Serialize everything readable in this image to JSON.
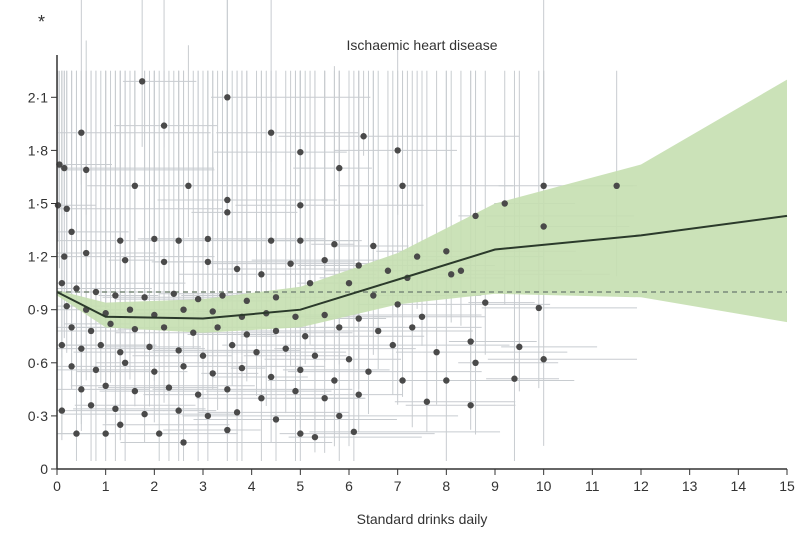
{
  "chart_data": {
    "type": "scatter",
    "panel_marker": "*",
    "title": "Ischaemic heart disease",
    "xlabel": "Standard drinks daily",
    "ylabel": "",
    "xlim": [
      0,
      15
    ],
    "ylim": [
      0,
      2.25
    ],
    "x_ticks": [
      "0",
      "1",
      "2",
      "3",
      "4",
      "5",
      "6",
      "7",
      "8",
      "9",
      "10",
      "11",
      "12",
      "13",
      "14",
      "15"
    ],
    "y_ticks": [
      {
        "v": 0,
        "label": "0"
      },
      {
        "v": 0.3,
        "label": "0·3"
      },
      {
        "v": 0.6,
        "label": "0·6"
      },
      {
        "v": 0.9,
        "label": "0·9"
      },
      {
        "v": 1.2,
        "label": "1·2"
      },
      {
        "v": 1.5,
        "label": "1·5"
      },
      {
        "v": 1.8,
        "label": "1·8"
      },
      {
        "v": 2.1,
        "label": "2·1"
      }
    ],
    "reference_line": 1.0,
    "grid": false,
    "colors": {
      "band": "#c5dfb0",
      "line": "#2b3a2b",
      "points": "#4a4a4a",
      "errorbars": "#c8ccd0",
      "reference": "#7a8a7a"
    },
    "fitted_curve": {
      "x": [
        0,
        1,
        3,
        5,
        7,
        9,
        12,
        15
      ],
      "y": [
        1.0,
        0.86,
        0.85,
        0.9,
        1.07,
        1.24,
        1.32,
        1.43
      ],
      "upper": [
        1.01,
        0.94,
        0.96,
        1.03,
        1.22,
        1.5,
        1.72,
        2.2
      ],
      "lower": [
        0.98,
        0.8,
        0.77,
        0.8,
        0.93,
        0.99,
        0.97,
        0.83
      ]
    },
    "points": [
      [
        1.75,
        2.19
      ],
      [
        3.5,
        2.1
      ],
      [
        0.5,
        1.9
      ],
      [
        2.2,
        1.94
      ],
      [
        4.4,
        1.9
      ],
      [
        6.3,
        1.88
      ],
      [
        5.0,
        1.79
      ],
      [
        7.0,
        1.8
      ],
      [
        0.05,
        1.72
      ],
      [
        0.6,
        1.69
      ],
      [
        0.15,
        1.7
      ],
      [
        1.6,
        1.6
      ],
      [
        2.7,
        1.6
      ],
      [
        5.8,
        1.7
      ],
      [
        7.1,
        1.6
      ],
      [
        10.0,
        1.6
      ],
      [
        11.5,
        1.6
      ],
      [
        0.02,
        1.49
      ],
      [
        0.2,
        1.47
      ],
      [
        3.5,
        1.52
      ],
      [
        3.5,
        1.45
      ],
      [
        5.0,
        1.49
      ],
      [
        9.2,
        1.5
      ],
      [
        8.6,
        1.43
      ],
      [
        10.0,
        1.37
      ],
      [
        0.3,
        1.34
      ],
      [
        3.1,
        1.3
      ],
      [
        2.5,
        1.29
      ],
      [
        2.0,
        1.3
      ],
      [
        1.3,
        1.29
      ],
      [
        4.4,
        1.29
      ],
      [
        5.0,
        1.29
      ],
      [
        5.7,
        1.27
      ],
      [
        6.5,
        1.26
      ],
      [
        7.4,
        1.2
      ],
      [
        0.15,
        1.2
      ],
      [
        0.6,
        1.22
      ],
      [
        1.4,
        1.18
      ],
      [
        2.2,
        1.17
      ],
      [
        3.1,
        1.17
      ],
      [
        3.7,
        1.13
      ],
      [
        4.2,
        1.1
      ],
      [
        4.8,
        1.16
      ],
      [
        5.5,
        1.18
      ],
      [
        6.2,
        1.15
      ],
      [
        7.2,
        1.08
      ],
      [
        8.0,
        1.23
      ],
      [
        8.3,
        1.12
      ],
      [
        8.1,
        1.1
      ],
      [
        6.8,
        1.12
      ],
      [
        6.0,
        1.05
      ],
      [
        5.2,
        1.05
      ],
      [
        0.1,
        1.05
      ],
      [
        0.4,
        1.02
      ],
      [
        0.8,
        1.0
      ],
      [
        1.2,
        0.98
      ],
      [
        1.8,
        0.97
      ],
      [
        2.4,
        0.99
      ],
      [
        2.9,
        0.96
      ],
      [
        3.4,
        0.98
      ],
      [
        3.9,
        0.95
      ],
      [
        4.5,
        0.97
      ],
      [
        6.5,
        0.98
      ],
      [
        7.0,
        0.93
      ],
      [
        8.8,
        0.94
      ],
      [
        9.9,
        0.91
      ],
      [
        0.2,
        0.92
      ],
      [
        0.6,
        0.9
      ],
      [
        1.0,
        0.88
      ],
      [
        1.5,
        0.9
      ],
      [
        2.0,
        0.87
      ],
      [
        2.6,
        0.9
      ],
      [
        3.2,
        0.89
      ],
      [
        3.8,
        0.86
      ],
      [
        4.3,
        0.88
      ],
      [
        4.9,
        0.86
      ],
      [
        5.5,
        0.87
      ],
      [
        6.2,
        0.85
      ],
      [
        7.5,
        0.86
      ],
      [
        0.3,
        0.8
      ],
      [
        0.7,
        0.78
      ],
      [
        1.1,
        0.82
      ],
      [
        1.6,
        0.79
      ],
      [
        2.2,
        0.8
      ],
      [
        2.8,
        0.77
      ],
      [
        3.3,
        0.8
      ],
      [
        3.9,
        0.76
      ],
      [
        4.5,
        0.78
      ],
      [
        5.1,
        0.75
      ],
      [
        5.8,
        0.8
      ],
      [
        6.6,
        0.78
      ],
      [
        7.3,
        0.8
      ],
      [
        8.5,
        0.72
      ],
      [
        9.5,
        0.69
      ],
      [
        0.1,
        0.7
      ],
      [
        0.5,
        0.68
      ],
      [
        0.9,
        0.7
      ],
      [
        1.3,
        0.66
      ],
      [
        1.9,
        0.69
      ],
      [
        2.5,
        0.67
      ],
      [
        3.0,
        0.64
      ],
      [
        3.6,
        0.7
      ],
      [
        4.1,
        0.66
      ],
      [
        4.7,
        0.68
      ],
      [
        5.3,
        0.64
      ],
      [
        6.0,
        0.62
      ],
      [
        6.9,
        0.7
      ],
      [
        7.8,
        0.66
      ],
      [
        10.0,
        0.62
      ],
      [
        8.6,
        0.6
      ],
      [
        0.3,
        0.58
      ],
      [
        0.8,
        0.56
      ],
      [
        1.4,
        0.6
      ],
      [
        2.0,
        0.55
      ],
      [
        2.6,
        0.58
      ],
      [
        3.2,
        0.54
      ],
      [
        3.8,
        0.57
      ],
      [
        4.4,
        0.52
      ],
      [
        5.0,
        0.56
      ],
      [
        5.7,
        0.5
      ],
      [
        6.4,
        0.55
      ],
      [
        7.1,
        0.5
      ],
      [
        8.0,
        0.5
      ],
      [
        9.4,
        0.51
      ],
      [
        0.5,
        0.45
      ],
      [
        1.0,
        0.47
      ],
      [
        1.6,
        0.44
      ],
      [
        2.3,
        0.46
      ],
      [
        2.9,
        0.42
      ],
      [
        3.5,
        0.45
      ],
      [
        4.2,
        0.4
      ],
      [
        4.9,
        0.44
      ],
      [
        5.5,
        0.4
      ],
      [
        6.2,
        0.42
      ],
      [
        7.6,
        0.38
      ],
      [
        8.5,
        0.36
      ],
      [
        0.1,
        0.33
      ],
      [
        0.7,
        0.36
      ],
      [
        1.2,
        0.34
      ],
      [
        1.8,
        0.31
      ],
      [
        2.5,
        0.33
      ],
      [
        3.1,
        0.3
      ],
      [
        3.7,
        0.32
      ],
      [
        4.5,
        0.28
      ],
      [
        5.8,
        0.3
      ],
      [
        1.3,
        0.25
      ],
      [
        2.1,
        0.2
      ],
      [
        2.6,
        0.15
      ],
      [
        0.4,
        0.2
      ],
      [
        1.0,
        0.2
      ],
      [
        3.5,
        0.22
      ],
      [
        5.0,
        0.2
      ],
      [
        5.3,
        0.18
      ],
      [
        6.1,
        0.21
      ]
    ]
  }
}
